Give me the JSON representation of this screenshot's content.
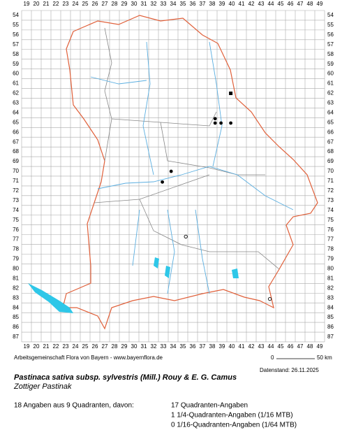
{
  "columns": [
    19,
    20,
    21,
    22,
    23,
    24,
    25,
    26,
    27,
    28,
    29,
    30,
    31,
    32,
    33,
    34,
    35,
    36,
    37,
    38,
    39,
    40,
    41,
    42,
    43,
    44,
    45,
    46,
    47,
    48,
    49
  ],
  "rows": [
    54,
    55,
    56,
    57,
    58,
    59,
    60,
    61,
    62,
    63,
    64,
    65,
    66,
    67,
    68,
    69,
    70,
    71,
    72,
    73,
    74,
    75,
    76,
    77,
    78,
    79,
    80,
    81,
    82,
    83,
    84,
    85,
    86,
    87
  ],
  "points": [
    {
      "x": 39.9,
      "y": 62.0,
      "marker": "square"
    },
    {
      "x": 38.3,
      "y": 64.6,
      "marker": "filled"
    },
    {
      "x": 38.3,
      "y": 65.05,
      "marker": "filled"
    },
    {
      "x": 38.9,
      "y": 65.05,
      "marker": "filled"
    },
    {
      "x": 39.9,
      "y": 65.05,
      "marker": "filled"
    },
    {
      "x": 33.8,
      "y": 70.0,
      "marker": "filled"
    },
    {
      "x": 32.9,
      "y": 71.1,
      "marker": "filled"
    },
    {
      "x": 35.3,
      "y": 76.7,
      "marker": "open"
    },
    {
      "x": 43.9,
      "y": 83.1,
      "marker": "open"
    }
  ],
  "credit": "Arbeitsgemeinschaft Flora von Bayern - www.bayernflora.de",
  "scale": {
    "start": "0",
    "end": "50 km"
  },
  "date": "Datenstand: 26.11.2025",
  "title": "Pastinaca sativa subsp. sylvestris (Mill.) Rouy & E. G. Camus",
  "subtitle": "Zottiger Pastinak",
  "summary": "18 Angaben aus 9 Quadranten, davon:",
  "stats": [
    "17 Quadranten-Angaben",
    "1 1/4-Quadranten-Angaben (1/16 MTB)",
    "0 1/16-Quadranten-Angaben (1/64 MTB)"
  ]
}
